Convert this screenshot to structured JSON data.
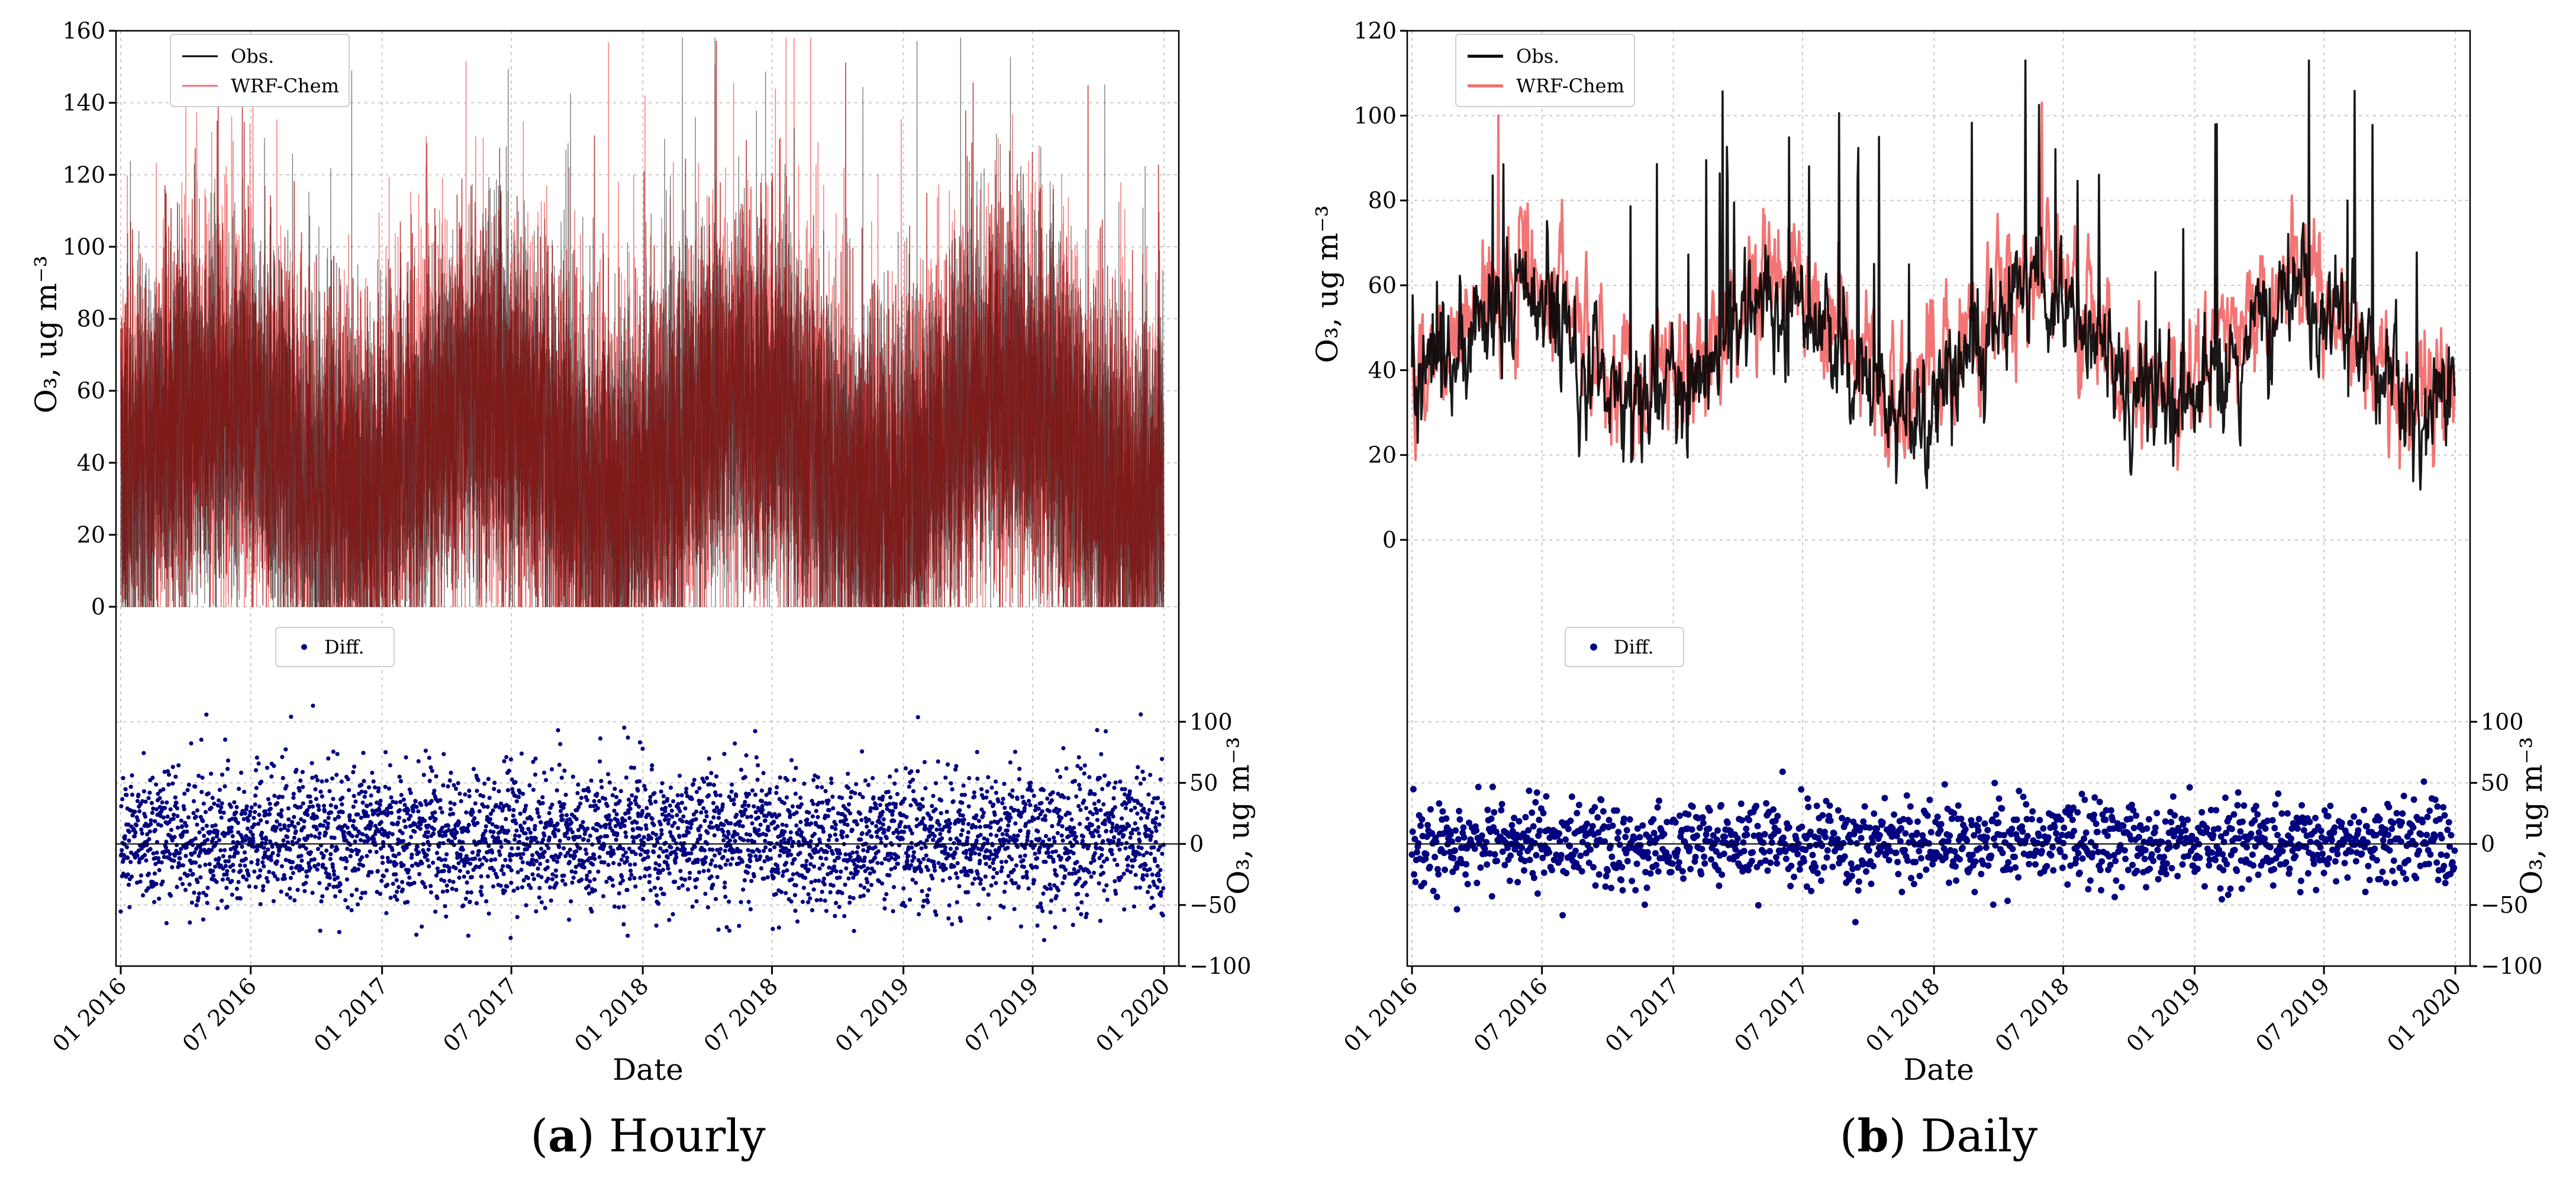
{
  "chart_data": [
    {
      "type": "line",
      "panel": "a",
      "caption_letter": "a",
      "caption_text": " Hourly",
      "xlabel": "Date",
      "ylabel": "O₃, ug m⁻³",
      "ylim": [
        0,
        160
      ],
      "yticks": [
        "0",
        "20",
        "40",
        "60",
        "80",
        "100",
        "120",
        "140",
        "160"
      ],
      "xlim": [
        "2016-01-01",
        "2020-01-15"
      ],
      "xtick_dates": [
        "2016-01-01",
        "2016-07-01",
        "2017-01-01",
        "2017-07-01",
        "2018-01-01",
        "2018-07-01",
        "2019-01-01",
        "2019-07-01",
        "2020-01-01"
      ],
      "xtick_labels": [
        "01 2016",
        "07 2016",
        "01 2017",
        "07 2017",
        "01 2018",
        "07 2018",
        "01 2019",
        "07 2019",
        "01 2020"
      ],
      "grid": true,
      "legend_position": "top-left",
      "series": [
        {
          "name": "Obs.",
          "color": "#000000",
          "frequency": "hourly",
          "mean": 42,
          "range": [
            0,
            158
          ],
          "peaks": [
            {
              "x": "2018-08-01",
              "y": 133
            },
            {
              "x": "2019-01-20",
              "y": 157
            },
            {
              "x": "2019-10-10",
              "y": 145
            }
          ]
        },
        {
          "name": "WRF-Chem",
          "color": "#f26d6d",
          "frequency": "hourly",
          "mean": 45,
          "range": [
            0,
            158
          ],
          "peaks": [
            {
              "x": "2016-05-15",
              "y": 135
            },
            {
              "x": "2018-08-01",
              "y": 158
            },
            {
              "x": "2019-07-10",
              "y": 128
            }
          ]
        }
      ],
      "diff": {
        "name": "Diff.",
        "color": "#000080",
        "ylim": [
          -100,
          120
        ],
        "yticks": [
          "−100",
          "−50",
          "0",
          "50",
          "100"
        ],
        "ylabel": "O₃, ug m⁻³",
        "spread_std": 28,
        "range": [
          -100,
          115
        ]
      }
    },
    {
      "type": "line",
      "panel": "b",
      "caption_letter": "b",
      "caption_text": " Daily",
      "xlabel": "Date",
      "ylabel": "O₃, ug m⁻³",
      "ylim": [
        0,
        120
      ],
      "yticks": [
        "0",
        "20",
        "40",
        "60",
        "80",
        "100",
        "120"
      ],
      "xlim": [
        "2016-01-01",
        "2020-01-15"
      ],
      "xtick_dates": [
        "2016-01-01",
        "2016-07-01",
        "2017-01-01",
        "2017-07-01",
        "2018-01-01",
        "2018-07-01",
        "2019-01-01",
        "2019-07-01",
        "2020-01-01"
      ],
      "xtick_labels": [
        "01 2016",
        "07 2016",
        "01 2017",
        "07 2017",
        "01 2018",
        "07 2018",
        "01 2019",
        "07 2019",
        "01 2020"
      ],
      "grid": true,
      "legend_position": "top-left",
      "series": [
        {
          "name": "Obs.",
          "color": "#000000",
          "frequency": "daily",
          "mean": 45,
          "range": [
            3,
            113
          ],
          "peaks": [
            {
              "x": "2019-02-01",
              "y": 98
            },
            {
              "x": "2019-06-10",
              "y": 113
            }
          ]
        },
        {
          "name": "WRF-Chem",
          "color": "#f26d6d",
          "frequency": "daily",
          "mean": 43,
          "range": [
            0,
            103
          ],
          "peaks": [
            {
              "x": "2016-05-01",
              "y": 100
            },
            {
              "x": "2018-06-01",
              "y": 103
            }
          ]
        }
      ],
      "diff": {
        "name": "Diff.",
        "color": "#000080",
        "ylim": [
          -100,
          120
        ],
        "yticks": [
          "−100",
          "−50",
          "0",
          "50",
          "100"
        ],
        "ylabel": "O₃, ug m⁻³",
        "spread_std": 18,
        "range": [
          -70,
          70
        ]
      }
    }
  ]
}
